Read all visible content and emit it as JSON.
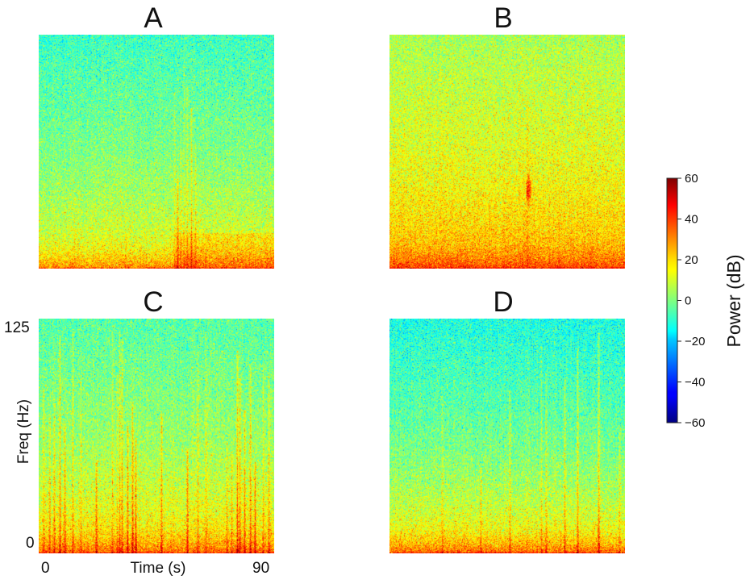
{
  "chart_data": {
    "type": "heatmap",
    "panels": [
      {
        "title": "A",
        "freq_range_hz": [
          0,
          125
        ],
        "time_range_s": [
          0,
          90
        ],
        "pattern": "Broadband power mostly in the cyan-green range at higher frequencies; red/orange low-frequency band near 0 Hz; cluster of vertical broadband transients around 52-60 s with strongest low-frequency power after 52 s.",
        "transient_times_s": [
          52.0,
          53.2,
          54.4,
          55.6,
          57.0,
          58.4,
          60.0
        ],
        "characteristic_power_db": {
          "high_freq": -8,
          "mid_freq": 0,
          "low_freq": 30
        }
      },
      {
        "title": "B",
        "freq_range_hz": [
          0,
          125
        ],
        "time_range_s": [
          0,
          90
        ],
        "pattern": "Warmer spectrum overall (yellow-green at high frequencies); thick orange/red low-frequency band up to about 35 Hz; a short orange feature near 52-57 s around 35-45 Hz.",
        "transient_times_s": [
          53.0
        ],
        "characteristic_power_db": {
          "high_freq": 5,
          "mid_freq": 12,
          "low_freq": 38
        }
      },
      {
        "title": "C",
        "freq_range_hz": [
          0,
          125
        ],
        "time_range_s": [
          0,
          90
        ],
        "pattern": "Green spectrum with many vertical broadband transients spanning most of the frequency range; dark red low-frequency band near 0 Hz.",
        "transient_times_s": [
          2,
          4,
          6,
          8,
          10,
          13,
          16,
          22,
          28,
          30,
          31,
          32,
          34,
          36,
          37,
          47,
          57,
          61,
          64,
          72,
          74,
          76,
          77,
          79,
          81,
          83,
          86,
          88
        ],
        "characteristic_power_db": {
          "high_freq": -5,
          "mid_freq": 3,
          "low_freq": 35
        }
      },
      {
        "title": "D",
        "freq_range_hz": [
          0,
          125
        ],
        "time_range_s": [
          0,
          90
        ],
        "pattern": "Cyan-green high frequencies; distinct orange/red low-frequency band below about 20 Hz; several faint vertical transients.",
        "transient_times_s": [
          20,
          35,
          46,
          58,
          60,
          67,
          72,
          80,
          88
        ],
        "characteristic_power_db": {
          "high_freq": -12,
          "mid_freq": -2,
          "low_freq": 36
        }
      }
    ],
    "axes": {
      "xlabel": "Time (s)",
      "ylabel": "Freq (Hz)",
      "x_tick_labels": [
        "0",
        "90"
      ],
      "y_tick_labels": [
        "0",
        "125"
      ],
      "labeled_panel": "C"
    },
    "colorbar": {
      "label": "Power (dB)",
      "range": [
        -60,
        60
      ],
      "ticks": [
        60,
        40,
        20,
        0,
        -20,
        -40,
        -60
      ],
      "tick_labels": [
        "60",
        "40",
        "20",
        "0",
        "−20",
        "−40",
        "−60"
      ],
      "colormap": "jet"
    }
  }
}
